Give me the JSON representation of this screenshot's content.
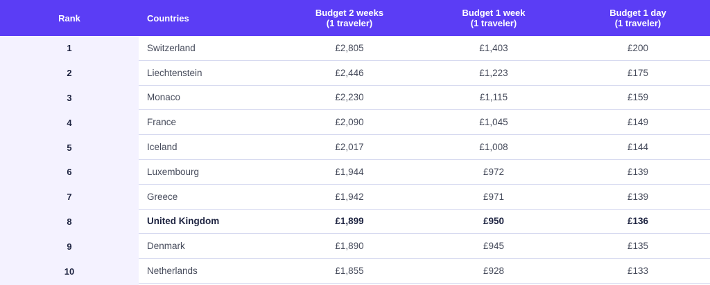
{
  "header": {
    "rank": "Rank",
    "countries": "Countries",
    "budget_2_weeks": "Budget 2 weeks",
    "budget_1_week": "Budget 1 week",
    "budget_1_day": "Budget 1 day",
    "traveler_note": "(1 traveler)"
  },
  "colors": {
    "header_bg": "#5b3df5",
    "rank_column_bg": "#f4f2ff",
    "row_divider": "#d7daf0"
  },
  "rows": [
    {
      "rank": "1",
      "country": "Switzerland",
      "w2": "£2,805",
      "w1": "£1,403",
      "d1": "£200"
    },
    {
      "rank": "2",
      "country": "Liechtenstein",
      "w2": "£2,446",
      "w1": "£1,223",
      "d1": "£175"
    },
    {
      "rank": "3",
      "country": "Monaco",
      "w2": "£2,230",
      "w1": "£1,115",
      "d1": "£159"
    },
    {
      "rank": "4",
      "country": "France",
      "w2": "£2,090",
      "w1": "£1,045",
      "d1": "£149"
    },
    {
      "rank": "5",
      "country": "Iceland",
      "w2": "£2,017",
      "w1": "£1,008",
      "d1": "£144"
    },
    {
      "rank": "6",
      "country": "Luxembourg",
      "w2": "£1,944",
      "w1": "£972",
      "d1": "£139"
    },
    {
      "rank": "7",
      "country": "Greece",
      "w2": "£1,942",
      "w1": "£971",
      "d1": "£139"
    },
    {
      "rank": "8",
      "country": "United Kingdom",
      "w2": "£1,899",
      "w1": "£950",
      "d1": "£136"
    },
    {
      "rank": "9",
      "country": "Denmark",
      "w2": "£1,890",
      "w1": "£945",
      "d1": "£135"
    },
    {
      "rank": "10",
      "country": "Netherlands",
      "w2": "£1,855",
      "w1": "£928",
      "d1": "£133"
    }
  ]
}
